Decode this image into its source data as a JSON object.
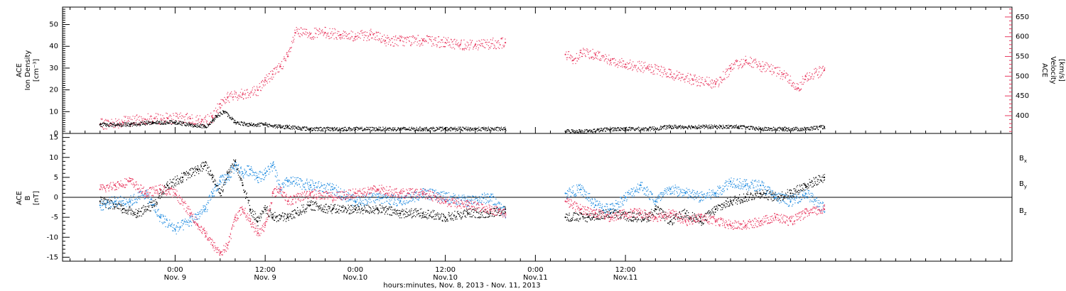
{
  "colors": {
    "black": "#000000",
    "blue": "#1f8be0",
    "pink": "#e8385f"
  },
  "chart_data": [
    {
      "type": "scatter",
      "panel": "top",
      "ylabel_left": [
        "ACE",
        "Ion Density",
        "[cm⁻³]"
      ],
      "ylabel_right": [
        "ACE",
        "Velocity",
        "[km/s]"
      ],
      "ylim_left": [
        0,
        58
      ],
      "ylim_right": [
        355,
        675
      ],
      "yticks_left": [
        0,
        10,
        20,
        30,
        40,
        50
      ],
      "yticks_right": [
        400,
        450,
        500,
        550,
        600,
        650
      ],
      "grid": false,
      "series": [
        {
          "axis": "left",
          "color": "#000000",
          "x": [
            -10,
            -6,
            -3,
            0,
            2,
            4,
            5,
            5.5,
            6.5,
            8,
            10,
            12,
            14,
            15,
            18,
            21,
            24,
            27,
            30,
            33,
            36,
            40,
            44,
            48,
            50,
            52,
            55,
            58,
            60,
            63,
            66,
            69,
            72,
            75,
            78,
            81,
            84,
            86.5
          ],
          "y": [
            4,
            4,
            5,
            5,
            4,
            3,
            6,
            8,
            10,
            5,
            4,
            4,
            3,
            3,
            2,
            2,
            2,
            2,
            2,
            2,
            2,
            2,
            2,
            null,
            null,
            1,
            1,
            2,
            2,
            2,
            3,
            3,
            3,
            3,
            2,
            2,
            2,
            3
          ]
        },
        {
          "axis": "right",
          "color": "#e8385f",
          "x": [
            -10,
            -7,
            -4,
            -1,
            2,
            3.5,
            5,
            6,
            7,
            9,
            11,
            12,
            13,
            14,
            15,
            16,
            18,
            20,
            22,
            24,
            26,
            28,
            30,
            33,
            36,
            38,
            40,
            44,
            48,
            50,
            52,
            53,
            54,
            56,
            58,
            60,
            63,
            66,
            69,
            72,
            74,
            76,
            78,
            81,
            83,
            84,
            86.5
          ],
          "y": [
            378,
            384,
            391,
            393,
            393,
            385,
            395,
            430,
            447,
            455,
            465,
            490,
            505,
            525,
            550,
            610,
            607,
            610,
            605,
            600,
            605,
            590,
            590,
            590,
            585,
            580,
            580,
            585,
            null,
            null,
            555,
            540,
            560,
            555,
            540,
            530,
            520,
            505,
            490,
            480,
            520,
            540,
            525,
            505,
            470,
            500,
            515
          ]
        }
      ]
    },
    {
      "type": "scatter",
      "panel": "bottom",
      "ylabel_left": [
        "ACE",
        "B",
        "[nT]"
      ],
      "ylim": [
        -16,
        16
      ],
      "yticks": [
        -15,
        -10,
        -5,
        0,
        5,
        10,
        15
      ],
      "zero_line": 0,
      "grid": false,
      "legend_position": "right",
      "series": [
        {
          "name": "Bx",
          "color": "#000000",
          "x": [
            -10,
            -7,
            -5,
            -3,
            -1,
            1,
            3,
            4,
            5,
            6,
            7,
            8,
            9,
            10,
            11,
            12,
            13,
            15,
            18,
            21,
            24,
            27,
            30,
            33,
            36,
            39,
            42,
            44,
            48,
            50,
            52,
            55,
            58,
            61,
            63,
            64,
            66,
            68,
            70,
            72,
            74,
            76,
            78,
            80,
            82,
            84,
            86.5
          ],
          "y": [
            -1,
            -3,
            -4,
            -2,
            3,
            5,
            7,
            8,
            5,
            1,
            6,
            9,
            3,
            -3,
            -6,
            -3,
            -5,
            -5,
            -2,
            -3,
            -3,
            -3,
            -4,
            -4,
            -5,
            -4,
            -4,
            -3,
            null,
            null,
            -5,
            -5,
            -4,
            -5,
            -5,
            -3,
            -6,
            -4,
            -6,
            -3,
            -1,
            0,
            1,
            0,
            1,
            3,
            5
          ]
        },
        {
          "name": "By",
          "color": "#1f8be0",
          "x": [
            -10,
            -8,
            -6,
            -4,
            -2,
            0,
            2,
            4,
            5,
            6,
            7,
            8,
            9,
            10,
            11,
            12,
            13,
            14,
            15,
            18,
            21,
            24,
            27,
            30,
            33,
            36,
            39,
            42,
            44,
            48,
            50,
            52,
            54,
            56,
            58,
            60,
            62,
            64,
            66,
            68,
            70,
            72,
            74,
            76,
            78,
            80,
            82,
            84,
            86.5
          ],
          "y": [
            -2,
            -1,
            -1,
            1,
            -5,
            -8,
            -6,
            -3,
            1,
            4,
            5,
            8,
            6,
            7,
            5,
            6,
            8,
            2,
            4,
            3,
            2,
            -1,
            0,
            -1,
            1,
            0,
            -1,
            0,
            -4,
            null,
            null,
            1,
            2,
            -2,
            -3,
            0,
            3,
            -1,
            2,
            1,
            0,
            1,
            4,
            3,
            3,
            0,
            -1,
            1,
            -3
          ]
        },
        {
          "name": "Bz",
          "color": "#e8385f",
          "x": [
            -10,
            -8,
            -6,
            -4,
            -2,
            0,
            2,
            3,
            4,
            5,
            6,
            7,
            8,
            9,
            10,
            11,
            12,
            13,
            14,
            15,
            18,
            21,
            24,
            27,
            30,
            33,
            36,
            39,
            42,
            44,
            48,
            50,
            52,
            54,
            56,
            58,
            60,
            62,
            64,
            66,
            68,
            70,
            72,
            74,
            76,
            78,
            80,
            82,
            84,
            86.5
          ],
          "y": [
            2,
            3,
            4,
            1,
            2,
            1,
            -4,
            -7,
            -9,
            -12,
            -14,
            -12,
            -5,
            -3,
            -6,
            -9,
            -7,
            1,
            2,
            -1,
            1,
            0,
            1,
            2,
            1,
            1,
            -1,
            -2,
            -3,
            -4,
            null,
            null,
            -1,
            -3,
            -4,
            -5,
            -4,
            -4,
            -5,
            -4,
            -6,
            -5,
            -6,
            -7,
            -7,
            -6,
            -5,
            -6,
            -4,
            -3
          ]
        }
      ]
    }
  ],
  "x_axis": {
    "range_hours": [
      -15,
      111.5
    ],
    "major_ticks": [
      0,
      12,
      36,
      48,
      60
    ],
    "label_rows": [
      [
        "0:00",
        "12:00",
        "0:00",
        "12:00",
        "0:00",
        "12:00"
      ],
      [
        "Nov. 9",
        "Nov. 9",
        "Nov.10",
        "Nov.10",
        "Nov.11",
        "Nov.11"
      ]
    ],
    "label_hours": [
      0,
      12,
      24,
      36,
      48,
      60
    ],
    "title": "hours:minutes, Nov. 8, 2013 - Nov. 11, 2013"
  },
  "legend": {
    "bx": "B",
    "by": "B",
    "bz": "B",
    "bx_sub": "x",
    "by_sub": "y",
    "bz_sub": "z"
  }
}
